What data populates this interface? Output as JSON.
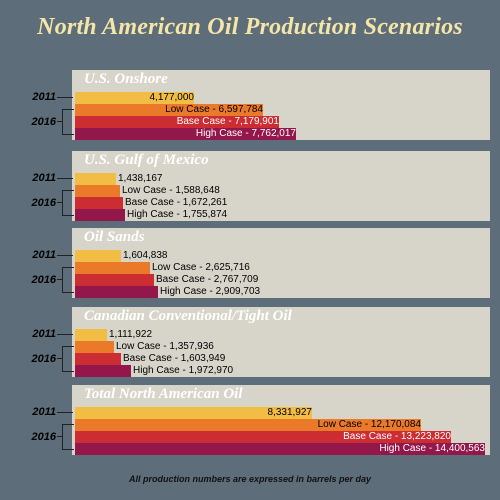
{
  "chart_data": {
    "type": "bar",
    "title": "North American Oil Production Scenarios",
    "note": "All production numbers are expressed in barrels per day",
    "year_labels": [
      "2011",
      "2016"
    ],
    "colors": {
      "current": "#f2bd45",
      "low": "#ea7a2a",
      "base": "#cc2d33",
      "high": "#93174a"
    },
    "series_labels": [
      "",
      "Low Case",
      "Base Case",
      "High Case"
    ],
    "sections": [
      {
        "name": "U.S. Onshore",
        "values": [
          4177000,
          6597784,
          7179901,
          7762017
        ],
        "labels": [
          "4,177,000",
          "Low Case - 6,597,784",
          "Base Case - 7,179,901",
          "High Case - 7,762,017"
        ]
      },
      {
        "name": "U.S. Gulf of Mexico",
        "values": [
          1438167,
          1588648,
          1672261,
          1755874
        ],
        "labels": [
          "1,438,167",
          "Low Case - 1,588,648",
          "Base Case - 1,672,261",
          "High Case - 1,755,874"
        ]
      },
      {
        "name": "Oil Sands",
        "values": [
          1604838,
          2625716,
          2767709,
          2909703
        ],
        "labels": [
          "1,604,838",
          "Low Case - 2,625,716",
          "Base Case - 2,767,709",
          "High Case - 2,909,703"
        ]
      },
      {
        "name": "Canadian Conventional/Tight Oil",
        "values": [
          1111922,
          1357936,
          1603949,
          1972970
        ],
        "labels": [
          "1,111,922",
          "Low Case - 1,357,936",
          "Base Case - 1,603,949",
          "High Case - 1,972,970"
        ]
      },
      {
        "name": "Total North American Oil",
        "values": [
          8331927,
          12170084,
          13223820,
          14400563
        ],
        "labels": [
          "8,331,927",
          "Low Case - 12,170,084",
          "Base Case - 13,223,820",
          "High Case - 14,400,563"
        ]
      }
    ]
  }
}
